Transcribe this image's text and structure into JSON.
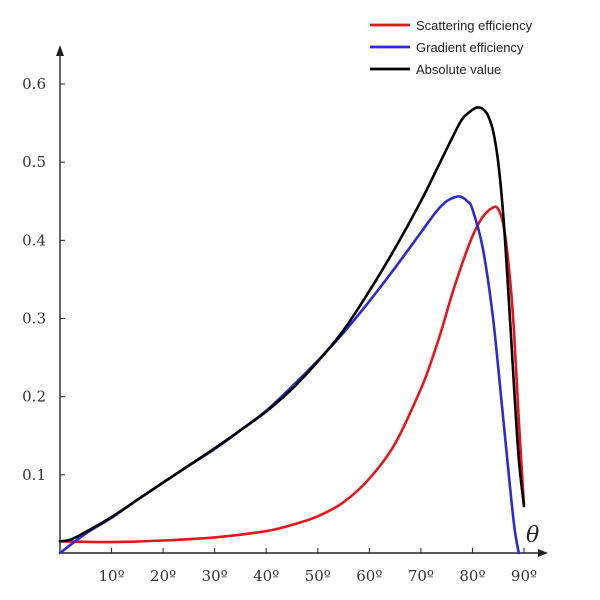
{
  "chart_data": {
    "type": "line",
    "title": "",
    "xlabel": "θ",
    "ylabel": "",
    "xlim": [
      0,
      92
    ],
    "ylim": [
      0,
      0.63
    ],
    "grid": false,
    "legend_position": "top-right",
    "x_ticks": [
      10,
      20,
      30,
      40,
      50,
      60,
      70,
      80,
      90
    ],
    "x_tick_labels": [
      "10º",
      "20º",
      "30º",
      "40º",
      "50º",
      "60º",
      "70º",
      "80º",
      "90º"
    ],
    "y_ticks": [
      0.1,
      0.2,
      0.3,
      0.4,
      0.5,
      0.6
    ],
    "y_tick_labels": [
      "0.1",
      "0.2",
      "0.3",
      "0.4",
      "0.5",
      "0.6"
    ],
    "series": [
      {
        "name": "Scattering efficiency",
        "color": "#e8141c",
        "x": [
          0,
          10,
          20,
          30,
          40,
          45,
          50,
          55,
          60,
          65,
          70,
          72,
          74,
          76,
          78,
          80,
          82,
          84,
          85,
          86,
          87,
          88,
          89,
          90
        ],
        "y": [
          0.015,
          0.014,
          0.016,
          0.02,
          0.028,
          0.036,
          0.047,
          0.065,
          0.095,
          0.14,
          0.21,
          0.245,
          0.285,
          0.33,
          0.37,
          0.405,
          0.43,
          0.442,
          0.44,
          0.42,
          0.37,
          0.29,
          0.17,
          0.06
        ]
      },
      {
        "name": "Gradient efficiency",
        "color": "#2b2bd6",
        "x": [
          0,
          5,
          10,
          15,
          20,
          25,
          30,
          35,
          40,
          45,
          50,
          55,
          60,
          65,
          70,
          73,
          75,
          77,
          78,
          79,
          80,
          82,
          84,
          86,
          88,
          89
        ],
        "y": [
          0.0,
          0.025,
          0.045,
          0.068,
          0.09,
          0.112,
          0.133,
          0.157,
          0.182,
          0.213,
          0.246,
          0.282,
          0.322,
          0.365,
          0.41,
          0.437,
          0.45,
          0.456,
          0.455,
          0.45,
          0.44,
          0.39,
          0.3,
          0.17,
          0.04,
          0.0
        ]
      },
      {
        "name": "Absolute value",
        "color": "#000000",
        "x": [
          0,
          2,
          5,
          10,
          15,
          20,
          25,
          30,
          35,
          40,
          45,
          50,
          55,
          60,
          65,
          70,
          73,
          76,
          78,
          80,
          81,
          82,
          83,
          84,
          85,
          86,
          87,
          88,
          89,
          90
        ],
        "y": [
          0.015,
          0.017,
          0.027,
          0.046,
          0.068,
          0.09,
          0.112,
          0.134,
          0.157,
          0.181,
          0.21,
          0.245,
          0.285,
          0.335,
          0.39,
          0.45,
          0.49,
          0.53,
          0.555,
          0.567,
          0.57,
          0.568,
          0.56,
          0.54,
          0.5,
          0.43,
          0.33,
          0.22,
          0.12,
          0.06
        ]
      }
    ]
  }
}
